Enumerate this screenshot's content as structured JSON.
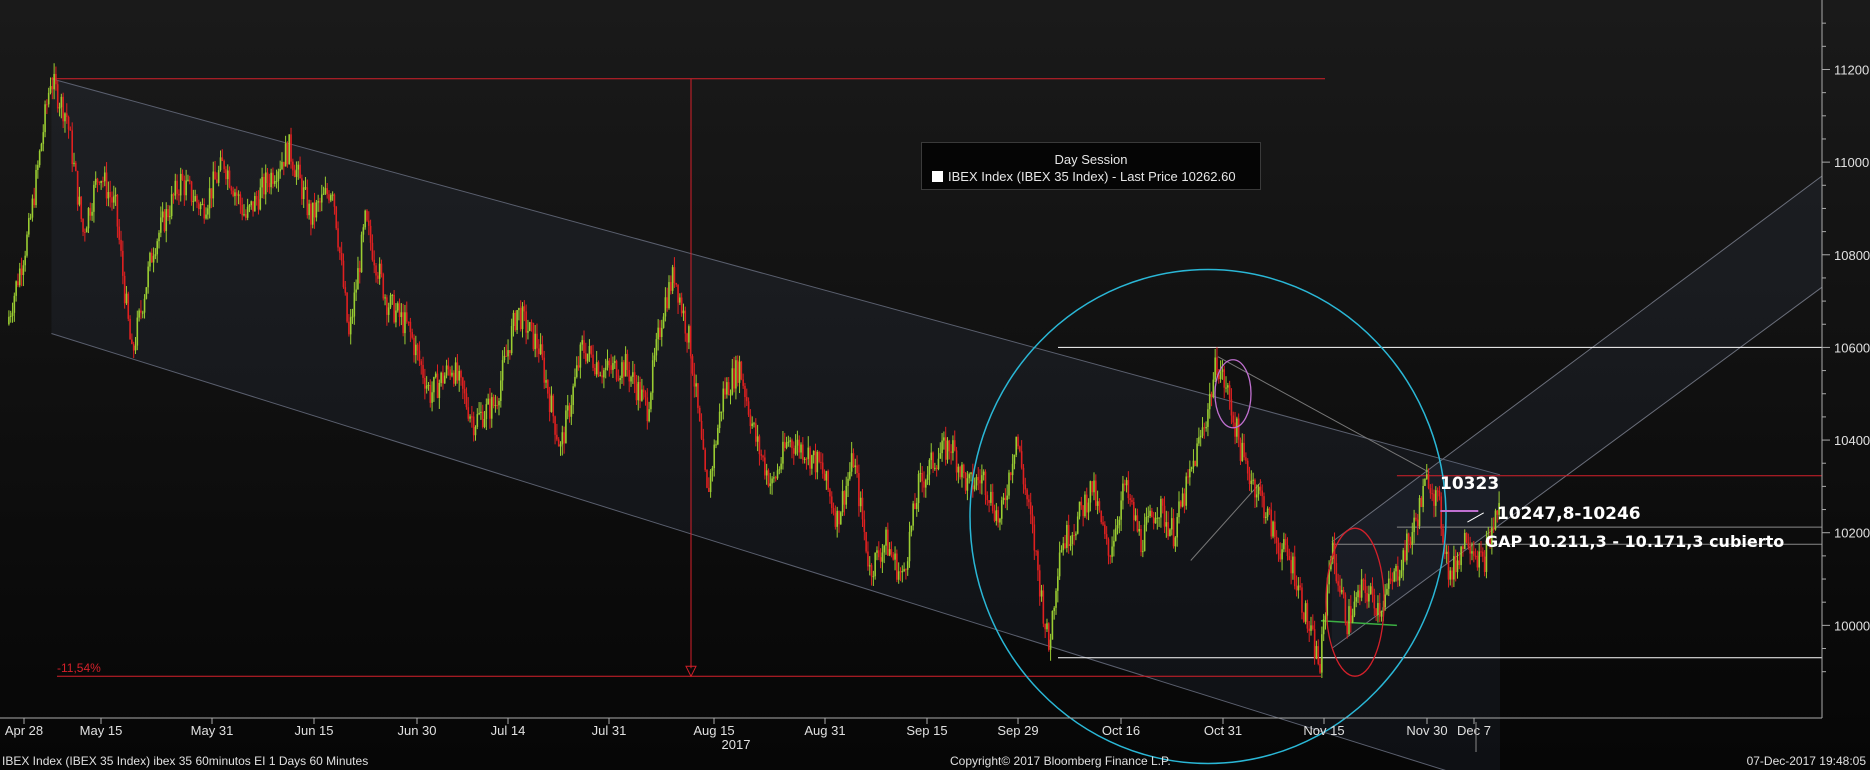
{
  "chart_data": {
    "type": "candlestick",
    "ylim": [
      9800,
      11350
    ],
    "yticks": [
      10000,
      10200,
      10400,
      10600,
      10800,
      11000,
      11200
    ],
    "xticks": [
      "Apr 28",
      "May 15",
      "May 31",
      "Jun 15",
      "Jun 30",
      "Jul 14",
      "Jul 31",
      "Aug 15",
      "Aug 31",
      "Sep 15",
      "Sep 29",
      "Oct 16",
      "Oct 31",
      "Nov 15",
      "Nov 30",
      "Dec 7"
    ],
    "year_label": "2017",
    "anchor_points": [
      {
        "x": 0,
        "y": 10650
      },
      {
        "x": 2,
        "y": 10750
      },
      {
        "x": 4,
        "y": 10850
      },
      {
        "x": 8,
        "y": 11180
      },
      {
        "x": 11,
        "y": 11100
      },
      {
        "x": 14,
        "y": 10850
      },
      {
        "x": 17,
        "y": 10980
      },
      {
        "x": 20,
        "y": 10900
      },
      {
        "x": 23,
        "y": 10580
      },
      {
        "x": 27,
        "y": 10820
      },
      {
        "x": 32,
        "y": 10960
      },
      {
        "x": 36,
        "y": 10900
      },
      {
        "x": 40,
        "y": 11000
      },
      {
        "x": 44,
        "y": 10880
      },
      {
        "x": 48,
        "y": 10960
      },
      {
        "x": 52,
        "y": 11030
      },
      {
        "x": 56,
        "y": 10880
      },
      {
        "x": 60,
        "y": 10950
      },
      {
        "x": 63,
        "y": 10620
      },
      {
        "x": 66,
        "y": 10870
      },
      {
        "x": 70,
        "y": 10700
      },
      {
        "x": 74,
        "y": 10640
      },
      {
        "x": 78,
        "y": 10500
      },
      {
        "x": 82,
        "y": 10560
      },
      {
        "x": 86,
        "y": 10440
      },
      {
        "x": 90,
        "y": 10480
      },
      {
        "x": 94,
        "y": 10680
      },
      {
        "x": 98,
        "y": 10600
      },
      {
        "x": 102,
        "y": 10380
      },
      {
        "x": 106,
        "y": 10600
      },
      {
        "x": 110,
        "y": 10550
      },
      {
        "x": 114,
        "y": 10560
      },
      {
        "x": 118,
        "y": 10470
      },
      {
        "x": 121,
        "y": 10690
      },
      {
        "x": 123,
        "y": 10760
      },
      {
        "x": 126,
        "y": 10600
      },
      {
        "x": 129,
        "y": 10280
      },
      {
        "x": 132,
        "y": 10500
      },
      {
        "x": 135,
        "y": 10560
      },
      {
        "x": 138,
        "y": 10400
      },
      {
        "x": 141,
        "y": 10300
      },
      {
        "x": 144,
        "y": 10400
      },
      {
        "x": 147,
        "y": 10380
      },
      {
        "x": 150,
        "y": 10340
      },
      {
        "x": 153,
        "y": 10230
      },
      {
        "x": 156,
        "y": 10360
      },
      {
        "x": 159,
        "y": 10120
      },
      {
        "x": 162,
        "y": 10180
      },
      {
        "x": 165,
        "y": 10100
      },
      {
        "x": 168,
        "y": 10300
      },
      {
        "x": 171,
        "y": 10360
      },
      {
        "x": 174,
        "y": 10390
      },
      {
        "x": 177,
        "y": 10300
      },
      {
        "x": 180,
        "y": 10320
      },
      {
        "x": 183,
        "y": 10220
      },
      {
        "x": 186,
        "y": 10410
      },
      {
        "x": 189,
        "y": 10200
      },
      {
        "x": 192,
        "y": 9950
      },
      {
        "x": 194,
        "y": 10170
      },
      {
        "x": 197,
        "y": 10220
      },
      {
        "x": 200,
        "y": 10300
      },
      {
        "x": 203,
        "y": 10150
      },
      {
        "x": 206,
        "y": 10300
      },
      {
        "x": 209,
        "y": 10180
      },
      {
        "x": 212,
        "y": 10260
      },
      {
        "x": 215,
        "y": 10200
      },
      {
        "x": 218,
        "y": 10320
      },
      {
        "x": 221,
        "y": 10450
      },
      {
        "x": 223,
        "y": 10570
      },
      {
        "x": 225,
        "y": 10500
      },
      {
        "x": 228,
        "y": 10350
      },
      {
        "x": 231,
        "y": 10280
      },
      {
        "x": 234,
        "y": 10180
      },
      {
        "x": 237,
        "y": 10130
      },
      {
        "x": 240,
        "y": 9990
      },
      {
        "x": 242,
        "y": 9910
      },
      {
        "x": 244,
        "y": 10170
      },
      {
        "x": 247,
        "y": 10010
      },
      {
        "x": 250,
        "y": 10080
      },
      {
        "x": 253,
        "y": 10040
      },
      {
        "x": 256,
        "y": 10110
      },
      {
        "x": 259,
        "y": 10200
      },
      {
        "x": 262,
        "y": 10323
      },
      {
        "x": 264,
        "y": 10250
      },
      {
        "x": 266,
        "y": 10100
      },
      {
        "x": 269,
        "y": 10200
      },
      {
        "x": 272,
        "y": 10130
      },
      {
        "x": 275,
        "y": 10262.6
      }
    ],
    "levels": [
      {
        "value": 11180,
        "color": "#d4202a"
      },
      {
        "value": 10600,
        "color": "#ffffff"
      },
      {
        "value": 10323,
        "color": "#d4202a"
      },
      {
        "value": 10212,
        "color": "#888888"
      },
      {
        "value": 10175,
        "color": "#888888"
      },
      {
        "value": 9930,
        "color": "#ffffff"
      },
      {
        "value": 9890,
        "color": "#d4202a"
      }
    ],
    "annotations": {
      "pct_drop": "-11,54%",
      "peak": "10323",
      "range": "10247,8-10246",
      "gap": "GAP 10.211,3 - 10.171,3 cubierto"
    },
    "colors": {
      "up": "#9acd32",
      "down": "#e02020",
      "last": "#ffffff"
    }
  },
  "legend": {
    "title": "Day Session",
    "series": "IBEX Index (IBEX 35 Index) - Last Price 10262.60"
  },
  "footer": {
    "left": "IBEX Index (IBEX 35 Index) ibex 35 60minutos EI 1 Days 60 Minutes",
    "center": "Copyright© 2017 Bloomberg Finance L.P.",
    "right": "07-Dec-2017 19:48:05"
  }
}
